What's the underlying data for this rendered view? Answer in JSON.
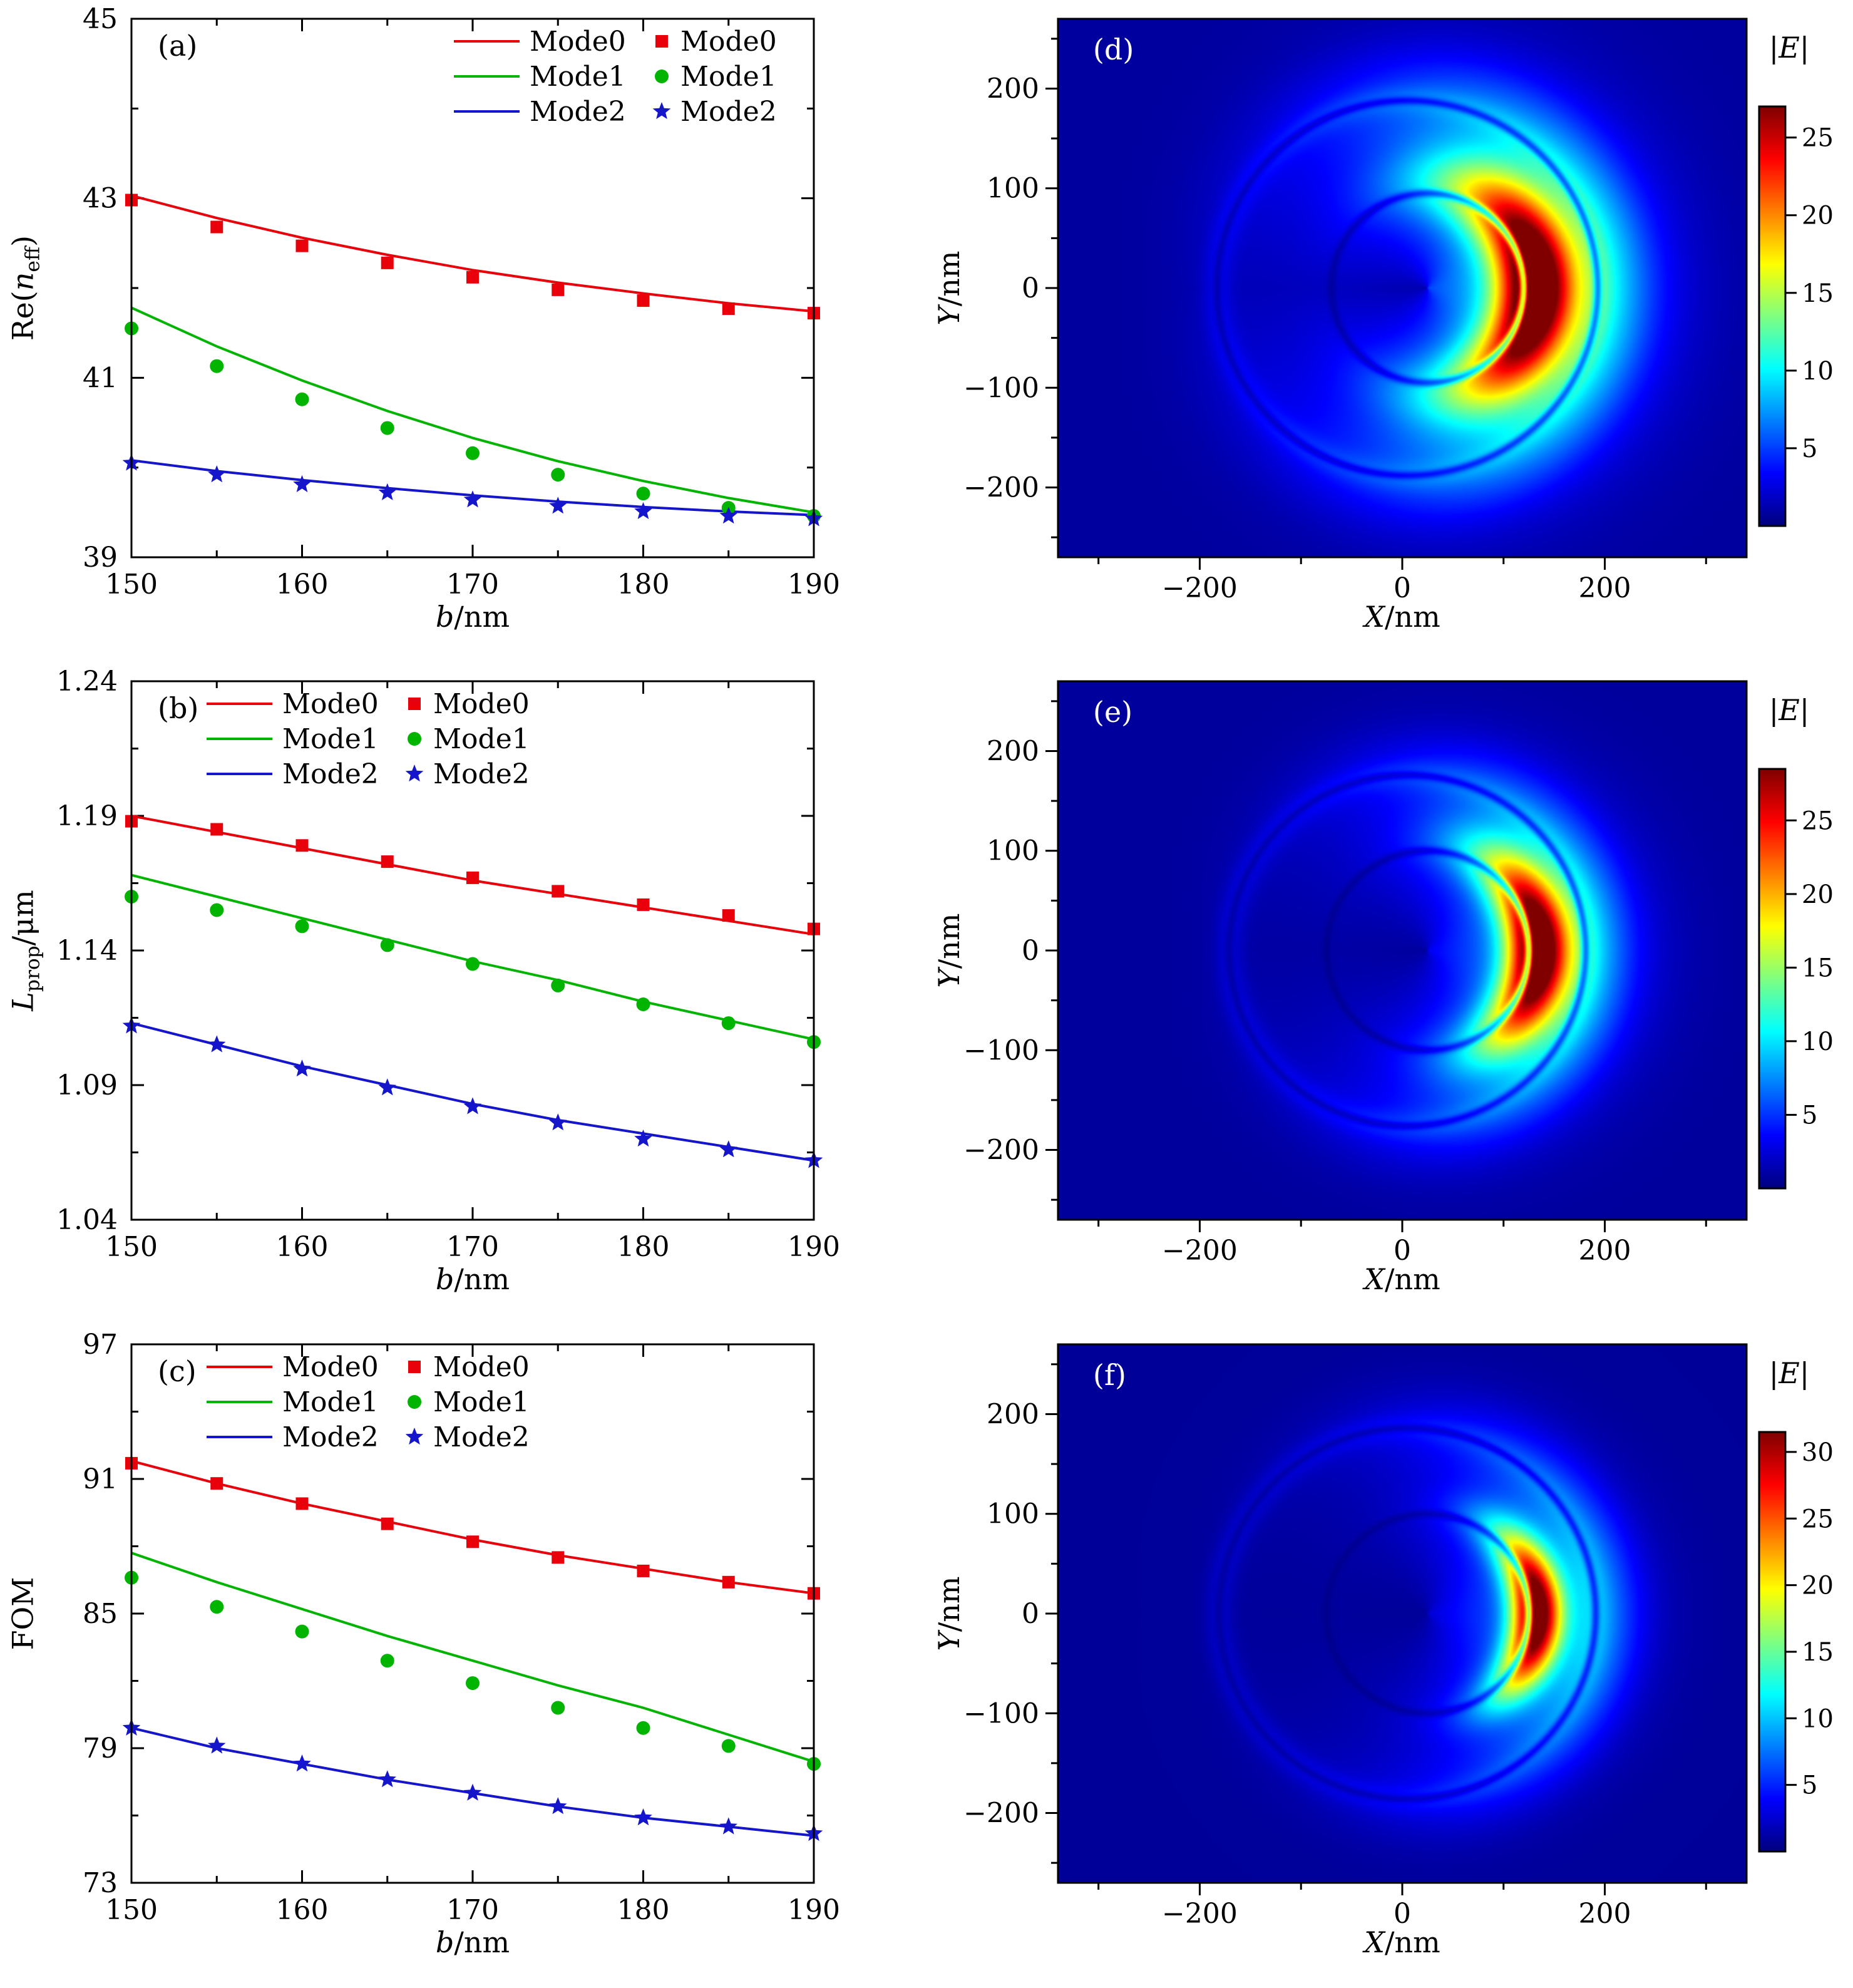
{
  "colors": {
    "mode0": "#e8000b",
    "mode1": "#00b400",
    "mode2": "#1515cb",
    "axis": "#000000",
    "background": "#ffffff"
  },
  "chart_data": [
    {
      "type": "line",
      "tag": "(a)",
      "xlabel": {
        "it": "b",
        "post": "/nm"
      },
      "ylabel": {
        "pre": "Re(",
        "it": "n",
        "sub": "eff",
        "post": ")"
      },
      "xlim": [
        150,
        190
      ],
      "ylim": [
        39,
        45
      ],
      "xticks": [
        150,
        160,
        170,
        180,
        190
      ],
      "xticklabels": [
        "150",
        "160",
        "170",
        "180",
        "190"
      ],
      "xminor": [
        155,
        165,
        175,
        185
      ],
      "yticks": [
        39,
        41,
        43,
        45
      ],
      "yticklabels": [
        "39",
        "41",
        "43",
        "45"
      ],
      "yminor": [
        40,
        42,
        44
      ],
      "x": [
        150,
        155,
        160,
        165,
        170,
        175,
        180,
        185,
        190
      ],
      "legend_pos": "right",
      "series": [
        {
          "name": "Mode0",
          "color": "mode0",
          "marker": "square",
          "line": [
            43.03,
            42.78,
            42.56,
            42.37,
            42.2,
            42.06,
            41.94,
            41.83,
            41.74
          ],
          "points": [
            42.98,
            42.68,
            42.47,
            42.28,
            42.12,
            41.98,
            41.86,
            41.77,
            41.72
          ]
        },
        {
          "name": "Mode1",
          "color": "mode1",
          "marker": "circle",
          "line": [
            41.78,
            41.35,
            40.97,
            40.63,
            40.33,
            40.07,
            39.85,
            39.66,
            39.5
          ],
          "points": [
            41.55,
            41.13,
            40.76,
            40.44,
            40.16,
            39.92,
            39.71,
            39.55,
            39.46
          ]
        },
        {
          "name": "Mode2",
          "color": "mode2",
          "marker": "star",
          "line": [
            40.08,
            39.96,
            39.86,
            39.77,
            39.69,
            39.62,
            39.56,
            39.51,
            39.47
          ],
          "points": [
            40.05,
            39.92,
            39.81,
            39.72,
            39.64,
            39.57,
            39.51,
            39.46,
            39.43
          ]
        }
      ]
    },
    {
      "type": "line",
      "tag": "(b)",
      "xlabel": {
        "it": "b",
        "post": "/nm"
      },
      "ylabel": {
        "pre": "",
        "it": "L",
        "sub": "prop",
        "post": "/μm"
      },
      "xlim": [
        150,
        190
      ],
      "ylim": [
        1.04,
        1.24
      ],
      "xticks": [
        150,
        160,
        170,
        180,
        190
      ],
      "xticklabels": [
        "150",
        "160",
        "170",
        "180",
        "190"
      ],
      "xminor": [
        155,
        165,
        175,
        185
      ],
      "yticks": [
        1.04,
        1.09,
        1.14,
        1.19,
        1.24
      ],
      "yticklabels": [
        "1.04",
        "1.09",
        "1.14",
        "1.19",
        "1.24"
      ],
      "yminor": [
        1.065,
        1.115,
        1.165,
        1.215
      ],
      "x": [
        150,
        155,
        160,
        165,
        170,
        175,
        180,
        185,
        190
      ],
      "legend_pos": "left",
      "series": [
        {
          "name": "Mode0",
          "color": "mode0",
          "marker": "square",
          "line": [
            1.19,
            1.184,
            1.178,
            1.172,
            1.166,
            1.161,
            1.156,
            1.151,
            1.146
          ],
          "points": [
            1.188,
            1.185,
            1.179,
            1.173,
            1.167,
            1.162,
            1.157,
            1.153,
            1.148
          ]
        },
        {
          "name": "Mode1",
          "color": "mode1",
          "marker": "circle",
          "line": [
            1.168,
            1.16,
            1.152,
            1.144,
            1.136,
            1.129,
            1.121,
            1.114,
            1.107
          ],
          "points": [
            1.16,
            1.155,
            1.149,
            1.142,
            1.135,
            1.127,
            1.12,
            1.113,
            1.106
          ]
        },
        {
          "name": "Mode2",
          "color": "mode2",
          "marker": "star",
          "line": [
            1.113,
            1.105,
            1.097,
            1.09,
            1.083,
            1.077,
            1.072,
            1.067,
            1.062
          ],
          "points": [
            1.112,
            1.105,
            1.096,
            1.089,
            1.082,
            1.076,
            1.07,
            1.066,
            1.062
          ]
        }
      ]
    },
    {
      "type": "line",
      "tag": "(c)",
      "xlabel": {
        "it": "b",
        "post": "/nm"
      },
      "ylabel": {
        "pre": "FOM",
        "it": "",
        "sub": "",
        "post": ""
      },
      "xlim": [
        150,
        190
      ],
      "ylim": [
        73,
        97
      ],
      "xticks": [
        150,
        160,
        170,
        180,
        190
      ],
      "xticklabels": [
        "150",
        "160",
        "170",
        "180",
        "190"
      ],
      "xminor": [
        155,
        165,
        175,
        185
      ],
      "yticks": [
        73,
        79,
        85,
        91,
        97
      ],
      "yticklabels": [
        "73",
        "79",
        "85",
        "91",
        "97"
      ],
      "yminor": [
        76,
        82,
        88,
        94
      ],
      "x": [
        150,
        155,
        160,
        165,
        170,
        175,
        180,
        185,
        190
      ],
      "legend_pos": "left",
      "series": [
        {
          "name": "Mode0",
          "color": "mode0",
          "marker": "square",
          "line": [
            91.8,
            90.8,
            89.9,
            89.1,
            88.3,
            87.6,
            87.0,
            86.4,
            85.9
          ],
          "points": [
            91.7,
            90.8,
            89.9,
            89.0,
            88.2,
            87.5,
            86.9,
            86.4,
            85.9
          ]
        },
        {
          "name": "Mode1",
          "color": "mode1",
          "marker": "circle",
          "line": [
            87.7,
            86.4,
            85.2,
            84.0,
            82.9,
            81.8,
            80.8,
            79.6,
            78.4
          ],
          "points": [
            86.6,
            85.3,
            84.2,
            82.9,
            81.9,
            80.8,
            79.9,
            79.1,
            78.3
          ]
        },
        {
          "name": "Mode2",
          "color": "mode2",
          "marker": "star",
          "line": [
            79.9,
            79.0,
            78.3,
            77.6,
            77.0,
            76.4,
            75.9,
            75.5,
            75.1
          ],
          "points": [
            79.9,
            79.1,
            78.3,
            77.6,
            77.0,
            76.4,
            75.9,
            75.5,
            75.2
          ]
        }
      ]
    },
    {
      "type": "heatmap",
      "tag": "(d)",
      "xlabel": {
        "it": "X",
        "post": "/nm"
      },
      "ylabel": {
        "it": "Y",
        "post": "/nm"
      },
      "xlim": [
        -340,
        340
      ],
      "ylim": [
        -270,
        270
      ],
      "xticks": [
        -200,
        0,
        200
      ],
      "xticklabels": [
        "−200",
        "0",
        "200"
      ],
      "xminor": [
        -300,
        -100,
        100,
        300
      ],
      "yticks": [
        -200,
        -100,
        0,
        100,
        200
      ],
      "yticklabels": [
        "−200",
        "−100",
        "0",
        "100",
        "200"
      ],
      "yminor": [
        -250,
        -150,
        -50,
        50,
        150,
        250
      ],
      "colorbar": {
        "bar_open": "|",
        "symbol": "E",
        "bar_close": "|",
        "vmax": 27,
        "ticks": [
          5,
          10,
          15,
          20,
          25
        ],
        "ticklabels": [
          "5",
          "10",
          "15",
          "20",
          "25"
        ]
      },
      "field": {
        "cx": 25,
        "cy": 0,
        "r_inner": 95,
        "r_peak": 105,
        "sigma_r": 26,
        "sigma_th": 52,
        "amp": 24,
        "glow_amp": 8,
        "glow_sr": 85,
        "glow_sth": 85,
        "ocx": 5,
        "ocy": 0,
        "r_outer": 188,
        "o_base": 1.4,
        "o_bsig": 10,
        "o_amp": 5,
        "o_sig": 35,
        "o_sth": 75,
        "bg": 0.8
      }
    },
    {
      "type": "heatmap",
      "tag": "(e)",
      "xlabel": {
        "it": "X",
        "post": "/nm"
      },
      "ylabel": {
        "it": "Y",
        "post": "/nm"
      },
      "xlim": [
        -340,
        340
      ],
      "ylim": [
        -270,
        270
      ],
      "xticks": [
        -200,
        0,
        200
      ],
      "xticklabels": [
        "−200",
        "0",
        "200"
      ],
      "xminor": [
        -300,
        -100,
        100,
        300
      ],
      "yticks": [
        -200,
        -100,
        0,
        100,
        200
      ],
      "yticklabels": [
        "−200",
        "−100",
        "0",
        "100",
        "200"
      ],
      "yminor": [
        -250,
        -150,
        -50,
        50,
        150,
        250
      ],
      "colorbar": {
        "bar_open": "|",
        "symbol": "E",
        "bar_close": "|",
        "vmax": 28.5,
        "ticks": [
          5,
          10,
          15,
          20,
          25
        ],
        "ticklabels": [
          "5",
          "10",
          "15",
          "20",
          "25"
        ]
      },
      "field": {
        "cx": 25,
        "cy": 0,
        "r_inner": 100,
        "r_peak": 108,
        "sigma_r": 21,
        "sigma_th": 40,
        "amp": 26,
        "glow_amp": 6.5,
        "glow_sr": 70,
        "glow_sth": 70,
        "ocx": 5,
        "ocy": 0,
        "r_outer": 176,
        "o_base": 1.4,
        "o_bsig": 10,
        "o_amp": 5,
        "o_sig": 30,
        "o_sth": 65,
        "bg": 0.8
      }
    },
    {
      "type": "heatmap",
      "tag": "(f)",
      "xlabel": {
        "it": "X",
        "post": "/nm"
      },
      "ylabel": {
        "it": "Y",
        "post": "/nm"
      },
      "xlim": [
        -340,
        340
      ],
      "ylim": [
        -270,
        270
      ],
      "xticks": [
        -200,
        0,
        200
      ],
      "xticklabels": [
        "−200",
        "0",
        "200"
      ],
      "xminor": [
        -300,
        -100,
        100,
        300
      ],
      "yticks": [
        -200,
        -100,
        0,
        100,
        200
      ],
      "yticklabels": [
        "−200",
        "−100",
        "0",
        "100",
        "200"
      ],
      "yminor": [
        -250,
        -150,
        -50,
        50,
        150,
        250
      ],
      "colorbar": {
        "bar_open": "|",
        "symbol": "E",
        "bar_close": "|",
        "vmax": 31.5,
        "ticks": [
          5,
          10,
          15,
          20,
          25,
          30
        ],
        "ticklabels": [
          "5",
          "10",
          "15",
          "20",
          "25",
          "30"
        ]
      },
      "field": {
        "cx": 25,
        "cy": 0,
        "r_inner": 100,
        "r_peak": 107,
        "sigma_r": 17,
        "sigma_th": 33,
        "amp": 29,
        "glow_amp": 6,
        "glow_sr": 65,
        "glow_sth": 60,
        "ocx": 5,
        "ocy": 0,
        "r_outer": 186,
        "o_base": 1.4,
        "o_bsig": 10,
        "o_amp": 5,
        "o_sig": 30,
        "o_sth": 60,
        "bg": 0.8
      }
    }
  ]
}
